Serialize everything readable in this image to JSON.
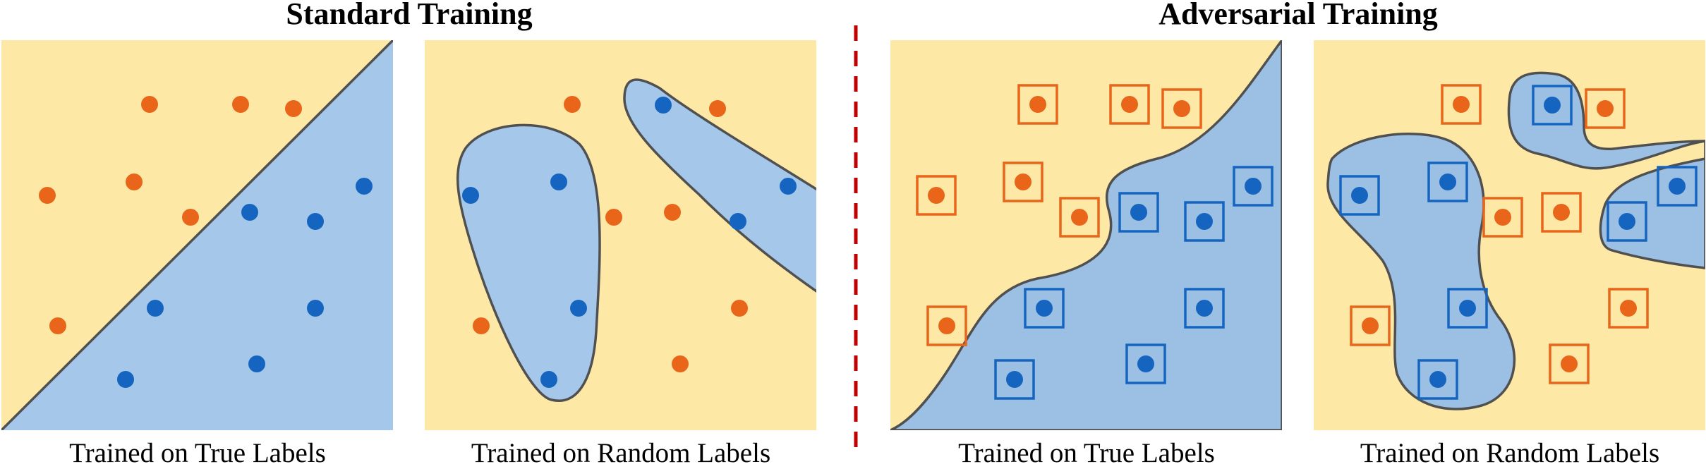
{
  "sections": [
    {
      "title": "Standard Training"
    },
    {
      "title": "Adversarial Training"
    }
  ],
  "panels": [
    {
      "caption": "Trained on True Labels",
      "adversarial": false
    },
    {
      "caption": "Trained on Random Labels",
      "adversarial": false
    },
    {
      "caption": "Trained on True Labels",
      "adversarial": true
    },
    {
      "caption": "Trained on Random Labels",
      "adversarial": true
    }
  ],
  "colors": {
    "background_region": "#fde8a5",
    "blue_region": "#a5c8ea",
    "blue_region_adversarial": "#9cc0e4",
    "orange_point": "#e8651a",
    "blue_point": "#1565c0",
    "boundary": "#505050",
    "divider": "#c00000"
  }
}
